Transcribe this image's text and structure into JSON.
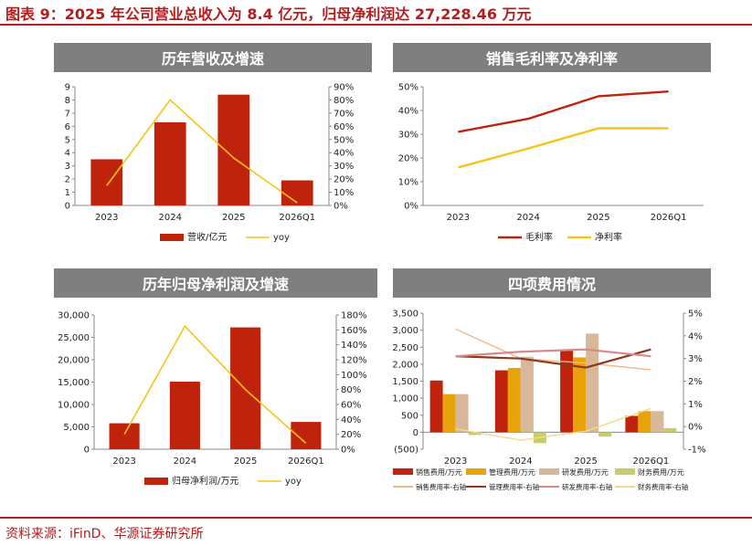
{
  "title": "图表 9：2025 年公司营业总收入为 8.4 亿元，归母净利润达 27,228.46 万元",
  "source": "资料来源：iFinD、华源证券研究所",
  "colors": {
    "red": "#c0230b",
    "yellow": "#f5c416",
    "orange": "#e88b22",
    "tan": "#d8b89a",
    "olive": "#c8cc6a",
    "pink": "#d88a8a",
    "darkbrown": "#8b3a1a",
    "lightorange": "#f2b88a",
    "lightyellow": "#f7d98a",
    "accent": "#b71c1c",
    "banner": "#7f7f7f"
  },
  "chart_data": [
    {
      "type": "bar",
      "title": "历年营收及增速",
      "categories": [
        "2023",
        "2024",
        "2025",
        "2026Q1"
      ],
      "series": [
        {
          "name": "营收/亿元",
          "type": "bar",
          "axis": "left",
          "values": [
            3.5,
            6.3,
            8.4,
            1.9
          ]
        },
        {
          "name": "yoy",
          "type": "line",
          "axis": "right",
          "values": [
            15,
            80,
            36,
            2
          ]
        }
      ],
      "y_left": {
        "min": 0,
        "max": 9,
        "step": 1,
        "ticks": [
          "0",
          "1",
          "2",
          "3",
          "4",
          "5",
          "6",
          "7",
          "8",
          "9"
        ]
      },
      "y_right": {
        "min": 0,
        "max": 90,
        "step": 10,
        "ticks": [
          "0%",
          "10%",
          "20%",
          "30%",
          "40%",
          "50%",
          "60%",
          "70%",
          "80%",
          "90%"
        ]
      }
    },
    {
      "type": "line",
      "title": "销售毛利率及净利率",
      "categories": [
        "2023",
        "2024",
        "2025",
        "2026Q1"
      ],
      "series": [
        {
          "name": "毛利率",
          "values": [
            31,
            36.5,
            46,
            48
          ]
        },
        {
          "name": "净利率",
          "values": [
            16,
            24,
            32.5,
            32.5
          ]
        }
      ],
      "y_left": {
        "min": 0,
        "max": 50,
        "step": 10,
        "ticks": [
          "0%",
          "10%",
          "20%",
          "30%",
          "40%",
          "50%"
        ]
      }
    },
    {
      "type": "bar",
      "title": "历年归母净利润及增速",
      "categories": [
        "2023",
        "2024",
        "2025",
        "2026Q1"
      ],
      "series": [
        {
          "name": "归母净利润/万元",
          "type": "bar",
          "axis": "left",
          "values": [
            5800,
            15100,
            27228,
            6100
          ]
        },
        {
          "name": "yoy",
          "type": "line",
          "axis": "right",
          "values": [
            20,
            165,
            80,
            8
          ]
        }
      ],
      "y_left": {
        "min": 0,
        "max": 30000,
        "step": 5000,
        "ticks": [
          "0",
          "5,000",
          "10,000",
          "15,000",
          "20,000",
          "25,000",
          "30,000"
        ]
      },
      "y_right": {
        "min": 0,
        "max": 180,
        "step": 20,
        "ticks": [
          "0%",
          "20%",
          "40%",
          "60%",
          "80%",
          "100%",
          "120%",
          "140%",
          "160%",
          "180%"
        ]
      }
    },
    {
      "type": "bar",
      "title": "四项费用情况",
      "categories": [
        "2023",
        "2024",
        "2025",
        "2026Q1"
      ],
      "bar_series": [
        {
          "name": "销售费用/万元",
          "values": [
            1520,
            1820,
            2420,
            480
          ]
        },
        {
          "name": "管理费用/万元",
          "values": [
            1120,
            1890,
            2200,
            620
          ]
        },
        {
          "name": "研发费用/万元",
          "values": [
            1120,
            2220,
            2900,
            620
          ]
        },
        {
          "name": "财务费用/万元",
          "values": [
            -80,
            -320,
            -130,
            120
          ]
        }
      ],
      "line_series": [
        {
          "name": "销售费用率-右轴",
          "values": [
            4.3,
            3.0,
            2.8,
            2.5
          ]
        },
        {
          "name": "管理费用率-右轴",
          "values": [
            3.1,
            3.0,
            2.6,
            3.4
          ]
        },
        {
          "name": "研发费用率-右轴",
          "values": [
            3.1,
            3.3,
            3.4,
            3.1
          ]
        },
        {
          "name": "财务费用率-右轴",
          "values": [
            -0.1,
            -0.6,
            -0.2,
            0.8
          ]
        }
      ],
      "y_left": {
        "min": -500,
        "max": 3500,
        "step": 500,
        "ticks": [
          "(500)",
          "0",
          "500",
          "1,000",
          "1,500",
          "2,000",
          "2,500",
          "3,000",
          "3,500"
        ]
      },
      "y_right": {
        "min": -1,
        "max": 5,
        "step": 1,
        "ticks": [
          "-1%",
          "0%",
          "1%",
          "2%",
          "3%",
          "4%",
          "5%"
        ]
      }
    }
  ]
}
